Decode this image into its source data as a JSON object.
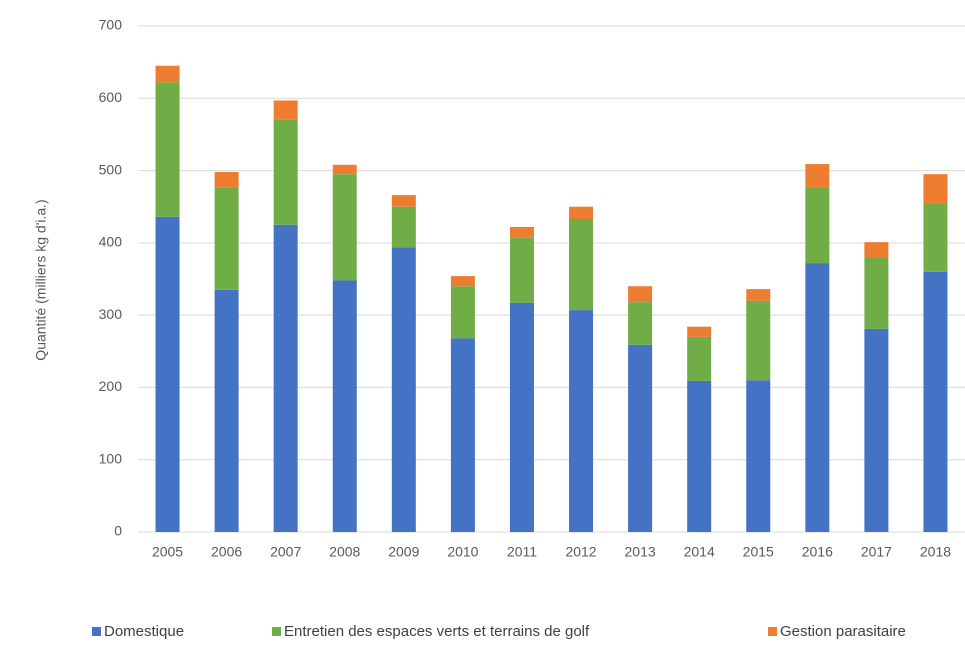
{
  "chart_data": {
    "type": "stacked_bar",
    "ylabel": "Quantité (milliers kg d'i.a.)",
    "categories": [
      "2005",
      "2006",
      "2007",
      "2008",
      "2009",
      "2010",
      "2011",
      "2012",
      "2013",
      "2014",
      "2015",
      "2016",
      "2017",
      "2018"
    ],
    "series": [
      {
        "name": "Domestique",
        "color": "#4472c4",
        "values": [
          436,
          335,
          425,
          348,
          394,
          268,
          317,
          307,
          259,
          209,
          210,
          372,
          281,
          360
        ]
      },
      {
        "name": "Entretien des espaces verts et terrains de golf",
        "color": "#70ad47",
        "values": [
          186,
          142,
          146,
          147,
          56,
          72,
          90,
          126,
          59,
          61,
          110,
          104,
          98,
          95
        ]
      },
      {
        "name": "Gestion parasitaire",
        "color": "#ed7d31",
        "values": [
          23,
          21,
          26,
          13,
          16,
          14,
          15,
          17,
          22,
          14,
          16,
          33,
          22,
          40
        ]
      }
    ],
    "ylim": [
      0,
      700
    ],
    "yticks": [
      0,
      100,
      200,
      300,
      400,
      500,
      600,
      700
    ],
    "grid": true
  }
}
